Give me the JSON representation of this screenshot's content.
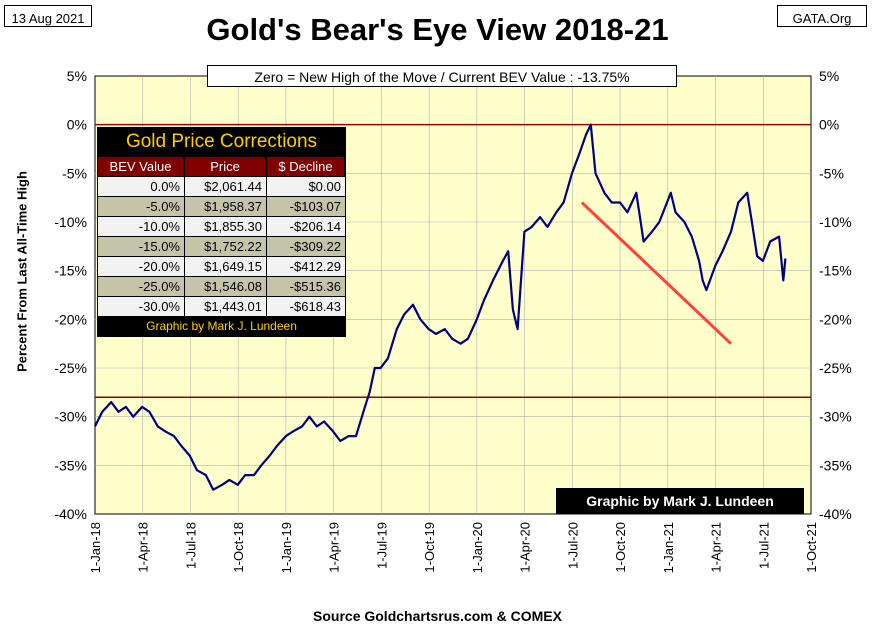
{
  "header": {
    "date": "13 Aug 2021",
    "source": "GATA.Org",
    "title": "Gold's Bear's Eye View 2018-21",
    "subtitle": "Zero = New High of the Move / Current  BEV Value : -13.75%",
    "ylabel": "Percent  From  Last  All-Time  High",
    "footer_source": "Source Goldchartsrus.com & COMEX",
    "credit": "Graphic by Mark J. Lundeen"
  },
  "colors": {
    "plot_bg": "#ffffcc",
    "series": "#000080",
    "ref_line": "#990000",
    "trend_line": "#ff4040",
    "table_header": "#800000",
    "table_title": "#ffcc00"
  },
  "corrections_table": {
    "title": "Gold Price Corrections",
    "headers": [
      "BEV Value",
      "Price",
      "$ Decline"
    ],
    "rows": [
      [
        "0.0%",
        "$2,061.44",
        "$0.00"
      ],
      [
        "-5.0%",
        "$1,958.37",
        "-$103.07"
      ],
      [
        "-10.0%",
        "$1,855.30",
        "-$206.14"
      ],
      [
        "-15.0%",
        "$1,752.22",
        "-$309.22"
      ],
      [
        "-20.0%",
        "$1,649.15",
        "-$412.29"
      ],
      [
        "-25.0%",
        "$1,546.08",
        "-$515.36"
      ],
      [
        "-30.0%",
        "$1,443.01",
        "-$618.43"
      ]
    ],
    "footer": "Graphic by Mark J. Lundeen"
  },
  "chart_data": {
    "type": "line",
    "ylim": [
      -40,
      5
    ],
    "yticks": [
      "5%",
      "0%",
      "-5%",
      "-10%",
      "-15%",
      "-20%",
      "-25%",
      "-30%",
      "-35%",
      "-40%"
    ],
    "xticks": [
      "1-Jan-18",
      "1-Apr-18",
      "1-Jul-18",
      "1-Oct-18",
      "1-Jan-19",
      "1-Apr-19",
      "1-Jul-19",
      "1-Oct-19",
      "1-Jan-20",
      "1-Apr-20",
      "1-Jul-20",
      "1-Oct-20",
      "1-Jan-21",
      "1-Apr-21",
      "1-Jul-21",
      "1-Oct-21"
    ],
    "grid": true,
    "current_value": -13.75,
    "reference_lines": [
      0,
      -28
    ],
    "trend_line": {
      "from": [
        "2020-07-20",
        -8
      ],
      "to": [
        "2021-05-01",
        -22.5
      ]
    },
    "series": [
      {
        "x": [
          "2018-01-01",
          "2018-01-15",
          "2018-02-01",
          "2018-02-15",
          "2018-03-01",
          "2018-03-15",
          "2018-04-01",
          "2018-04-15",
          "2018-05-01",
          "2018-05-15",
          "2018-06-01",
          "2018-06-15",
          "2018-07-01",
          "2018-07-15",
          "2018-08-01",
          "2018-08-15",
          "2018-09-01",
          "2018-09-15",
          "2018-10-01",
          "2018-10-15",
          "2018-11-01",
          "2018-11-15",
          "2018-12-01",
          "2018-12-15",
          "2019-01-01",
          "2019-01-15",
          "2019-02-01",
          "2019-02-15",
          "2019-03-01",
          "2019-03-15",
          "2019-04-01",
          "2019-04-15",
          "2019-05-01",
          "2019-05-15",
          "2019-06-01",
          "2019-06-10",
          "2019-06-20",
          "2019-07-01",
          "2019-07-15",
          "2019-08-01",
          "2019-08-15",
          "2019-09-01",
          "2019-09-15",
          "2019-10-01",
          "2019-10-15",
          "2019-11-01",
          "2019-11-15",
          "2019-12-01",
          "2019-12-15",
          "2020-01-01",
          "2020-01-15",
          "2020-02-01",
          "2020-02-20",
          "2020-03-01",
          "2020-03-10",
          "2020-03-19",
          "2020-04-01",
          "2020-04-15",
          "2020-05-01",
          "2020-05-15",
          "2020-06-01",
          "2020-06-15",
          "2020-07-01",
          "2020-07-15",
          "2020-07-28",
          "2020-08-06",
          "2020-08-15",
          "2020-09-01",
          "2020-09-15",
          "2020-10-01",
          "2020-10-15",
          "2020-11-01",
          "2020-11-15",
          "2020-12-01",
          "2020-12-15",
          "2021-01-06",
          "2021-01-15",
          "2021-02-01",
          "2021-02-15",
          "2021-03-01",
          "2021-03-08",
          "2021-03-15",
          "2021-04-01",
          "2021-04-15",
          "2021-05-01",
          "2021-05-15",
          "2021-06-01",
          "2021-06-10",
          "2021-06-20",
          "2021-07-01",
          "2021-07-15",
          "2021-08-01",
          "2021-08-09",
          "2021-08-13"
        ],
        "y": [
          -31,
          -29.5,
          -28.5,
          -29.5,
          -29,
          -30,
          -29,
          -29.5,
          -31,
          -31.5,
          -32,
          -33,
          -34,
          -35.5,
          -36,
          -37.5,
          -37,
          -36.5,
          -37,
          -36,
          -36,
          -35,
          -34,
          -33,
          -32,
          -31.5,
          -31,
          -30,
          -31,
          -30.5,
          -31.5,
          -32.5,
          -32,
          -32,
          -29,
          -27.5,
          -25,
          -25,
          -24,
          -21,
          -19.5,
          -18.5,
          -20,
          -21,
          -21.5,
          -21,
          -22,
          -22.5,
          -22,
          -20,
          -18,
          -16,
          -14,
          -13,
          -19,
          -21,
          -11,
          -10.5,
          -9.5,
          -10.5,
          -9,
          -8,
          -5,
          -3,
          -1,
          0,
          -5,
          -7,
          -8,
          -8,
          -9,
          -7,
          -12,
          -11,
          -10,
          -7,
          -9,
          -10,
          -11.5,
          -14,
          -16,
          -17,
          -14.5,
          -13,
          -11,
          -8,
          -7,
          -10,
          -13.5,
          -14,
          -12,
          -11.5,
          -16,
          -13.75
        ]
      }
    ]
  }
}
